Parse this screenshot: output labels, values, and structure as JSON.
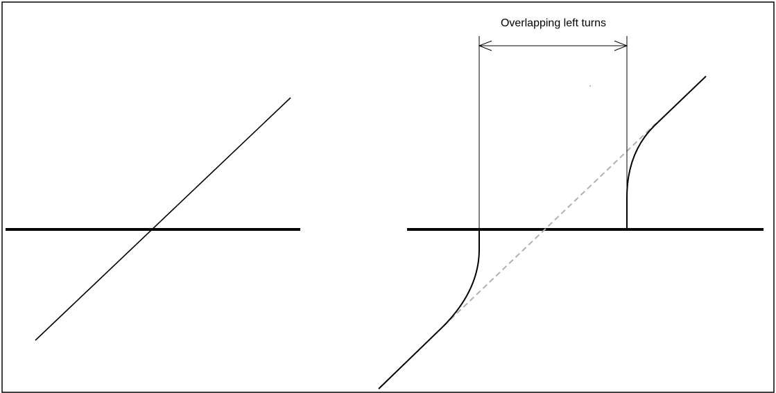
{
  "annotation": {
    "label": "Overlapping left turns"
  },
  "colors": {
    "background": "#ffffff",
    "stroke": "#000000",
    "projection": "#b0b0b0"
  }
}
